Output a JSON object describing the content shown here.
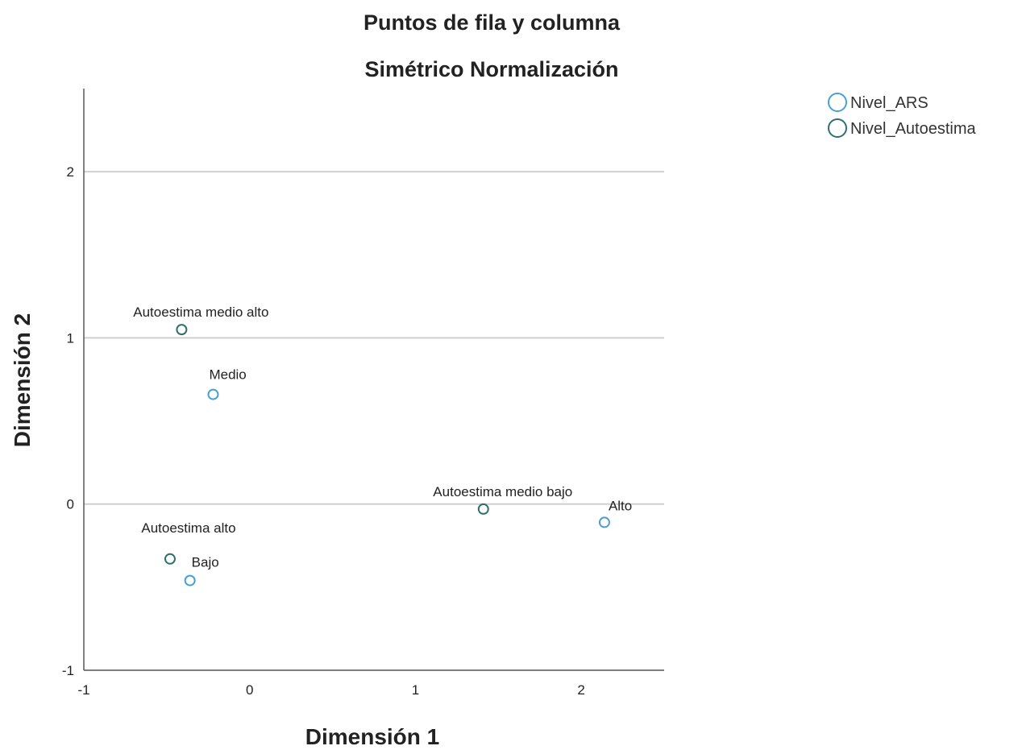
{
  "chart_data": {
    "type": "scatter",
    "title": "Puntos de fila y columna",
    "subtitle": "Simétrico Normalización",
    "xlabel": "Dimensión 1",
    "ylabel": "Dimensión 2",
    "xlim": [
      -1,
      2.5
    ],
    "ylim": [
      -1,
      2.5
    ],
    "xticks": [
      -1,
      0,
      1,
      2
    ],
    "yticks": [
      -1,
      0,
      1,
      2
    ],
    "grid": "horizontal",
    "legend_position": "top-right",
    "series": [
      {
        "name": "Nivel_ARS",
        "color": "#4a9fd4",
        "points": [
          {
            "label": "Medio",
            "x": -0.22,
            "y": 0.66
          },
          {
            "label": "Bajo",
            "x": -0.36,
            "y": -0.46
          },
          {
            "label": "Alto",
            "x": 2.14,
            "y": -0.11
          }
        ]
      },
      {
        "name": "Nivel_Autoestima",
        "color": "#2f6f6f",
        "points": [
          {
            "label": "Autoestima medio alto",
            "x": -0.41,
            "y": 1.05
          },
          {
            "label": "Autoestima medio bajo",
            "x": 1.41,
            "y": -0.03
          },
          {
            "label": "Autoestima alto",
            "x": -0.48,
            "y": -0.33
          }
        ]
      }
    ]
  }
}
